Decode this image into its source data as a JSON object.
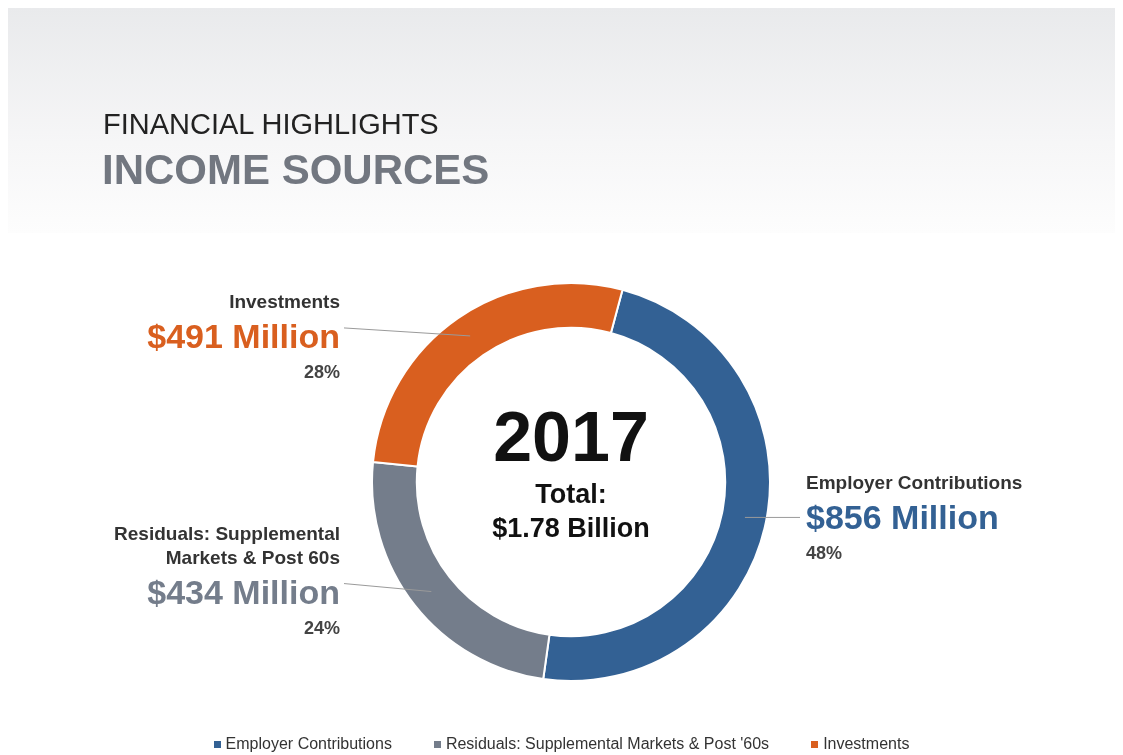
{
  "chart_data": {
    "type": "donut",
    "title": "FINANCIAL HIGHLIGHTS",
    "subtitle": "INCOME SOURCES",
    "categories": [
      "Employer Contributions",
      "Residuals: Supplemental Markets & Post '60s",
      "Investments"
    ],
    "values": [
      856,
      434,
      491
    ],
    "colors": [
      "#336194",
      "#747d8b",
      "#d95f1f"
    ],
    "value_labels": [
      "$856 Million",
      "$434 Million",
      "$491 Million"
    ],
    "annotations": [
      "Employer Contributions",
      "Residuals: Supplemental Markets & Post 60s",
      "Investments",
      "48%",
      "24%",
      "28%",
      "2017",
      "Total:",
      "$1.78 Billion"
    ],
    "legend": "bottom"
  }
}
